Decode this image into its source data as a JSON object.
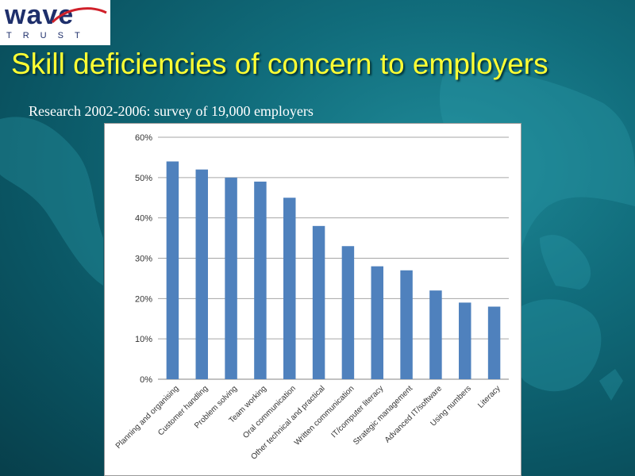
{
  "logo": {
    "word": "wave",
    "sub": "TRUST"
  },
  "title": "Skill deficiencies of concern to employers",
  "subtitle": "Research 2002-2006: survey of 19,000 employers",
  "colors": {
    "bar": "#4f81bd",
    "title": "#ffff33",
    "grid": "#a6a6a6"
  },
  "chart_data": {
    "type": "bar",
    "categories": [
      "Planning and organising",
      "Customer handling",
      "Problem solving",
      "Team working",
      "Oral communication",
      "Other technical and practical",
      "Written communication",
      "IT/computer literacy",
      "Strategic management",
      "Advanced IT/software",
      "Using numbers",
      "Literacy"
    ],
    "values": [
      54,
      52,
      50,
      49,
      45,
      38,
      33,
      28,
      27,
      22,
      19,
      18
    ],
    "ylim": [
      0,
      60
    ],
    "yticks": [
      "0%",
      "10%",
      "20%",
      "30%",
      "40%",
      "50%",
      "60%"
    ],
    "grid": true,
    "legend": "none"
  }
}
